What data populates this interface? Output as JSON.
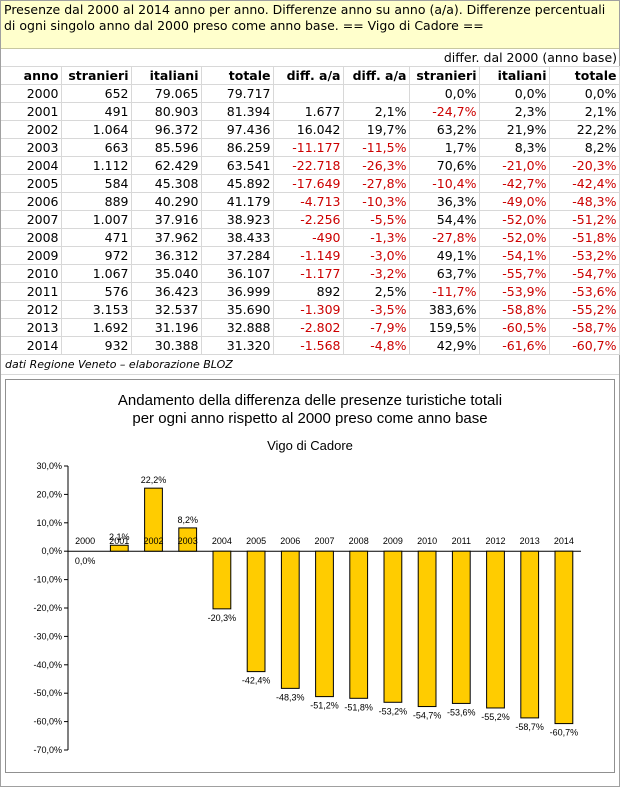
{
  "header": {
    "text": "Presenze dal 2000 al 2014 anno per anno. Differenze anno su anno (a/a). Differenze percentuali di ogni singolo anno dal 2000 preso come anno base. == Vigo di Cadore =="
  },
  "table": {
    "base_header": "differ. dal 2000 (anno base)",
    "columns": [
      "anno",
      "stranieri",
      "italiani",
      "totale",
      "diff. a/a",
      "diff. a/a",
      "stranieri",
      "italiani",
      "totale"
    ],
    "rows": [
      [
        "2000",
        "652",
        "79.065",
        "79.717",
        "",
        "",
        "0,0%",
        "0,0%",
        "0,0%"
      ],
      [
        "2001",
        "491",
        "80.903",
        "81.394",
        "1.677",
        "2,1%",
        "-24,7%",
        "2,3%",
        "2,1%"
      ],
      [
        "2002",
        "1.064",
        "96.372",
        "97.436",
        "16.042",
        "19,7%",
        "63,2%",
        "21,9%",
        "22,2%"
      ],
      [
        "2003",
        "663",
        "85.596",
        "86.259",
        "-11.177",
        "-11,5%",
        "1,7%",
        "8,3%",
        "8,2%"
      ],
      [
        "2004",
        "1.112",
        "62.429",
        "63.541",
        "-22.718",
        "-26,3%",
        "70,6%",
        "-21,0%",
        "-20,3%"
      ],
      [
        "2005",
        "584",
        "45.308",
        "45.892",
        "-17.649",
        "-27,8%",
        "-10,4%",
        "-42,7%",
        "-42,4%"
      ],
      [
        "2006",
        "889",
        "40.290",
        "41.179",
        "-4.713",
        "-10,3%",
        "36,3%",
        "-49,0%",
        "-48,3%"
      ],
      [
        "2007",
        "1.007",
        "37.916",
        "38.923",
        "-2.256",
        "-5,5%",
        "54,4%",
        "-52,0%",
        "-51,2%"
      ],
      [
        "2008",
        "471",
        "37.962",
        "38.433",
        "-490",
        "-1,3%",
        "-27,8%",
        "-52,0%",
        "-51,8%"
      ],
      [
        "2009",
        "972",
        "36.312",
        "37.284",
        "-1.149",
        "-3,0%",
        "49,1%",
        "-54,1%",
        "-53,2%"
      ],
      [
        "2010",
        "1.067",
        "35.040",
        "36.107",
        "-1.177",
        "-3,2%",
        "63,7%",
        "-55,7%",
        "-54,7%"
      ],
      [
        "2011",
        "576",
        "36.423",
        "36.999",
        "892",
        "2,5%",
        "-11,7%",
        "-53,9%",
        "-53,6%"
      ],
      [
        "2012",
        "3.153",
        "32.537",
        "35.690",
        "-1.309",
        "-3,5%",
        "383,6%",
        "-58,8%",
        "-55,2%"
      ],
      [
        "2013",
        "1.692",
        "31.196",
        "32.888",
        "-2.802",
        "-7,9%",
        "159,5%",
        "-60,5%",
        "-58,7%"
      ],
      [
        "2014",
        "932",
        "30.388",
        "31.320",
        "-1.568",
        "-4,8%",
        "42,9%",
        "-61,6%",
        "-60,7%"
      ]
    ],
    "negative_color": "#cc0000"
  },
  "credit": "dati Regione Veneto – elaborazione BLOZ",
  "chart_data": {
    "type": "bar",
    "title": "Andamento della differenza delle presenze turistiche totali\nper ogni anno rispetto al 2000 preso come anno base",
    "subtitle": "Vigo di Cadore",
    "categories": [
      "2000",
      "2001",
      "2002",
      "2003",
      "2004",
      "2005",
      "2006",
      "2007",
      "2008",
      "2009",
      "2010",
      "2011",
      "2012",
      "2013",
      "2014"
    ],
    "values": [
      0.0,
      2.1,
      22.2,
      8.2,
      -20.3,
      -42.4,
      -48.3,
      -51.2,
      -51.8,
      -53.2,
      -54.7,
      -53.6,
      -55.2,
      -58.7,
      -60.7
    ],
    "value_labels": [
      "0,0%",
      "2,1%",
      "22,2%",
      "8,2%",
      "-20,3%",
      "-42,4%",
      "-48,3%",
      "-51,2%",
      "-51,8%",
      "-53,2%",
      "-54,7%",
      "-53,6%",
      "-55,2%",
      "-58,7%",
      "-60,7%"
    ],
    "y_ticks": [
      "30,0%",
      "20,0%",
      "10,0%",
      "0,0%",
      "-10,0%",
      "-20,0%",
      "-30,0%",
      "-40,0%",
      "-50,0%",
      "-60,0%",
      "-70,0%"
    ],
    "ylim": [
      -70,
      30
    ],
    "bar_color": "#ffcc00",
    "grid": false,
    "legend": "none"
  }
}
